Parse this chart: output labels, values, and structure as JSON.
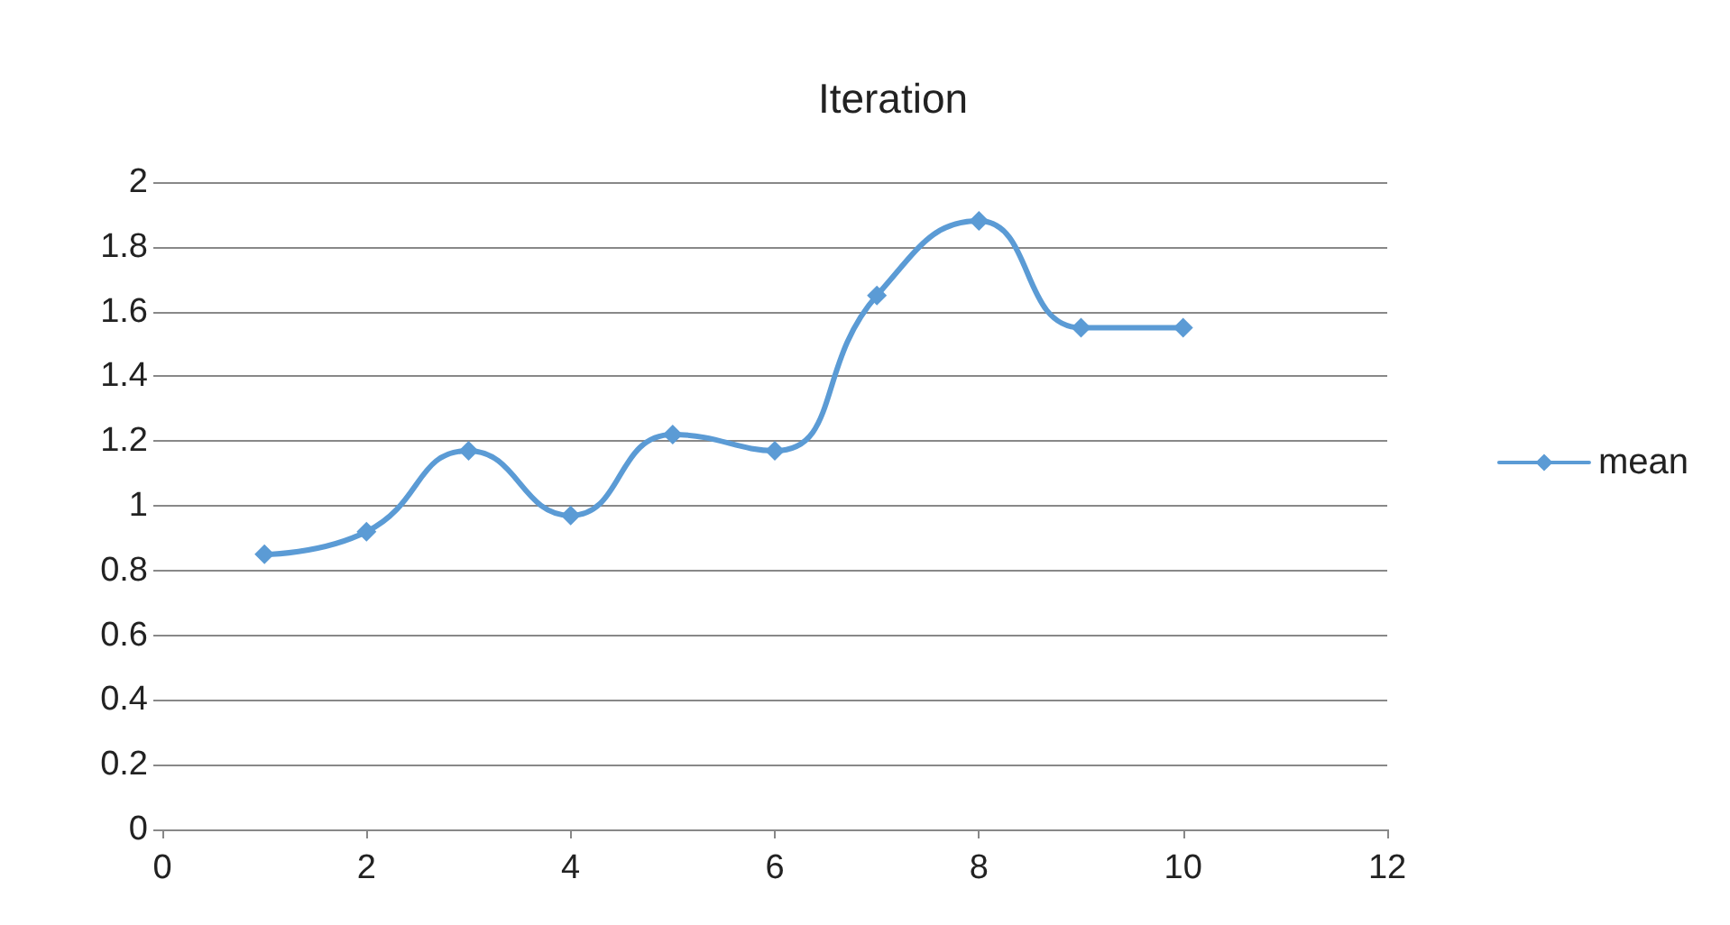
{
  "chart_data": {
    "type": "line",
    "title": "Iteration",
    "x": [
      1,
      2,
      3,
      4,
      5,
      6,
      7,
      8,
      9,
      10
    ],
    "series": [
      {
        "name": "mean",
        "color": "#5b9bd5",
        "values": [
          0.85,
          0.92,
          1.17,
          0.97,
          1.22,
          1.17,
          1.65,
          1.88,
          1.55,
          1.55
        ]
      }
    ],
    "xlim": [
      0,
      12
    ],
    "xticks": [
      0,
      2,
      4,
      6,
      8,
      10,
      12
    ],
    "ylim": [
      0,
      2
    ],
    "yticks": [
      0,
      0.2,
      0.4,
      0.6,
      0.8,
      1,
      1.2,
      1.4,
      1.6,
      1.8,
      2
    ],
    "grid": "y",
    "legend": "right",
    "marker": "diamond",
    "line_style": "solid"
  }
}
